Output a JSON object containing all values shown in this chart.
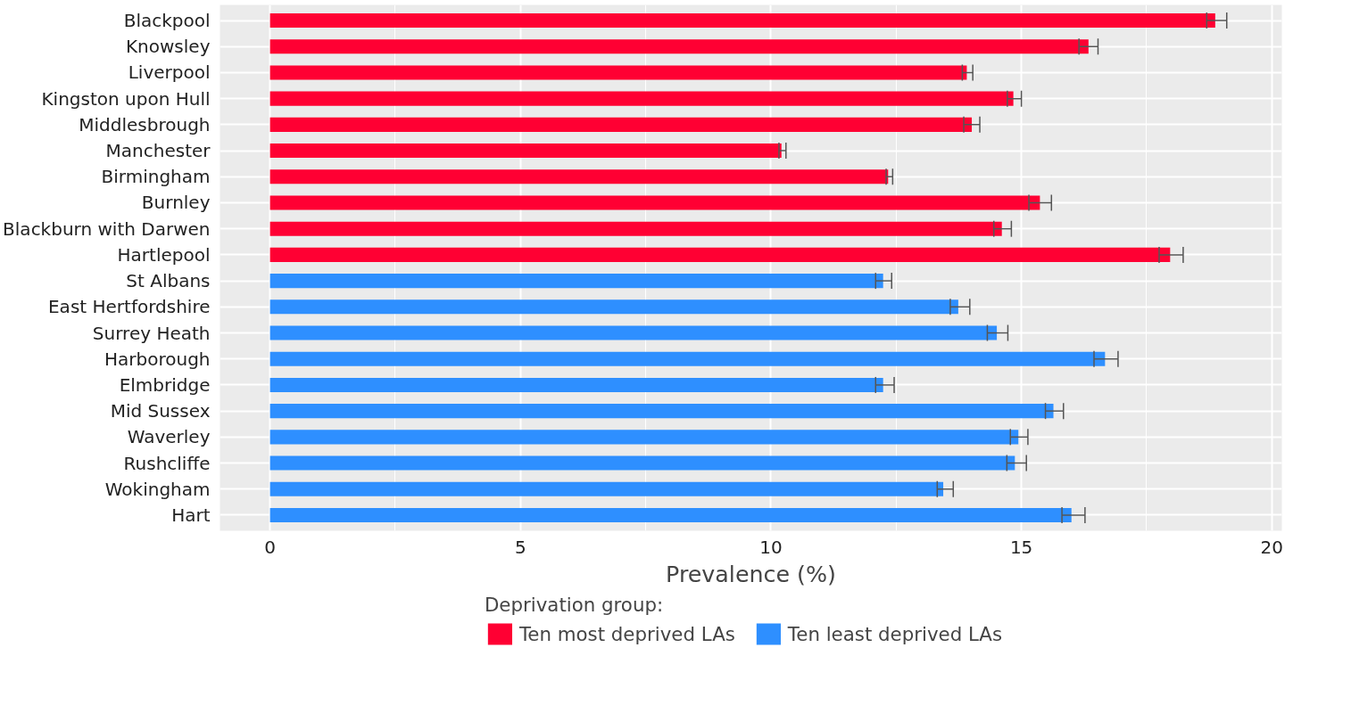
{
  "chart_data": {
    "type": "bar",
    "orientation": "horizontal",
    "xlabel": "Prevalence (%)",
    "legend_title": "Deprivation group:",
    "categories": [
      "Blackpool",
      "Knowsley",
      "Liverpool",
      "Kingston upon Hull",
      "Middlesbrough",
      "Manchester",
      "Birmingham",
      "Burnley",
      "Blackburn with Darwen",
      "Hartlepool",
      "St Albans",
      "East Hertfordshire",
      "Surrey Heath",
      "Harborough",
      "Elmbridge",
      "Mid Sussex",
      "Waverley",
      "Rushcliffe",
      "Wokingham",
      "Hart"
    ],
    "series": [
      {
        "name": "Ten most deprived LAs",
        "color": "#ff0033",
        "values": [
          18.87,
          16.34,
          13.91,
          14.84,
          14.01,
          10.21,
          12.34,
          15.37,
          14.61,
          17.97,
          null,
          null,
          null,
          null,
          null,
          null,
          null,
          null,
          null,
          null
        ],
        "errors": [
          [
            18.7,
            19.1
          ],
          [
            16.15,
            16.53
          ],
          [
            13.82,
            14.03
          ],
          [
            14.72,
            15.0
          ],
          [
            13.85,
            14.17
          ],
          [
            10.16,
            10.3
          ],
          [
            12.3,
            12.43
          ],
          [
            15.15,
            15.6
          ],
          [
            14.45,
            14.8
          ],
          [
            17.75,
            18.23
          ],
          null,
          null,
          null,
          null,
          null,
          null,
          null,
          null,
          null,
          null
        ]
      },
      {
        "name": "Ten least deprived LAs",
        "color": "#2e8fff",
        "values": [
          null,
          null,
          null,
          null,
          null,
          null,
          null,
          null,
          null,
          null,
          12.24,
          13.74,
          14.51,
          16.67,
          12.24,
          15.64,
          14.94,
          14.87,
          13.44,
          16.0
        ],
        "errors": [
          null,
          null,
          null,
          null,
          null,
          null,
          null,
          null,
          null,
          null,
          [
            12.09,
            12.41
          ],
          [
            13.58,
            13.97
          ],
          [
            14.32,
            14.73
          ],
          [
            16.45,
            16.93
          ],
          [
            12.09,
            12.46
          ],
          [
            15.48,
            15.84
          ],
          [
            14.78,
            15.13
          ],
          [
            14.71,
            15.1
          ],
          [
            13.32,
            13.64
          ],
          [
            15.81,
            16.27
          ]
        ]
      }
    ],
    "xlim": [
      -1,
      20.2
    ],
    "xticks": [
      0,
      5,
      10,
      15,
      20
    ],
    "grid": true,
    "legend": "bottom"
  }
}
